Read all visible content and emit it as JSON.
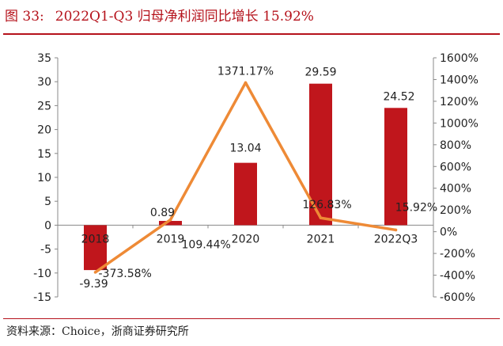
{
  "header": {
    "figure_label": "图 33:",
    "title": "2022Q1-Q3 归母净利润同比增长 15.92%"
  },
  "footer": {
    "source": "资料来源：Choice，浙商证券研究所"
  },
  "colors": {
    "accent": "#b5121b",
    "bar": "#c0161c",
    "line": "#ee8a36"
  },
  "chart_data": {
    "type": "bar",
    "categories": [
      "2018",
      "2019",
      "2020",
      "2021",
      "2022Q3"
    ],
    "series": [
      {
        "type": "bar",
        "axis": "left",
        "values": [
          -9.39,
          0.89,
          13.04,
          29.59,
          24.52
        ],
        "labels": [
          "-9.39",
          "0.89",
          "13.04",
          "29.59",
          "24.52"
        ]
      },
      {
        "type": "line",
        "axis": "right",
        "values": [
          -373.58,
          109.44,
          1371.17,
          126.83,
          15.92
        ],
        "labels": [
          "-373.58%",
          "109.44%",
          "1371.17%",
          "126.83%",
          "15.92%"
        ]
      }
    ],
    "y_left": {
      "min": -15,
      "max": 35,
      "step": 5,
      "ticks": [
        "-15",
        "-10",
        "-5",
        "0",
        "5",
        "10",
        "15",
        "20",
        "25",
        "30",
        "35"
      ]
    },
    "y_right": {
      "min": -600,
      "max": 1600,
      "step": 200,
      "ticks": [
        "-600%",
        "-400%",
        "-200%",
        "0%",
        "200%",
        "400%",
        "600%",
        "800%",
        "1000%",
        "1200%",
        "1400%",
        "1600%"
      ]
    },
    "grid": false,
    "legend": "none"
  }
}
